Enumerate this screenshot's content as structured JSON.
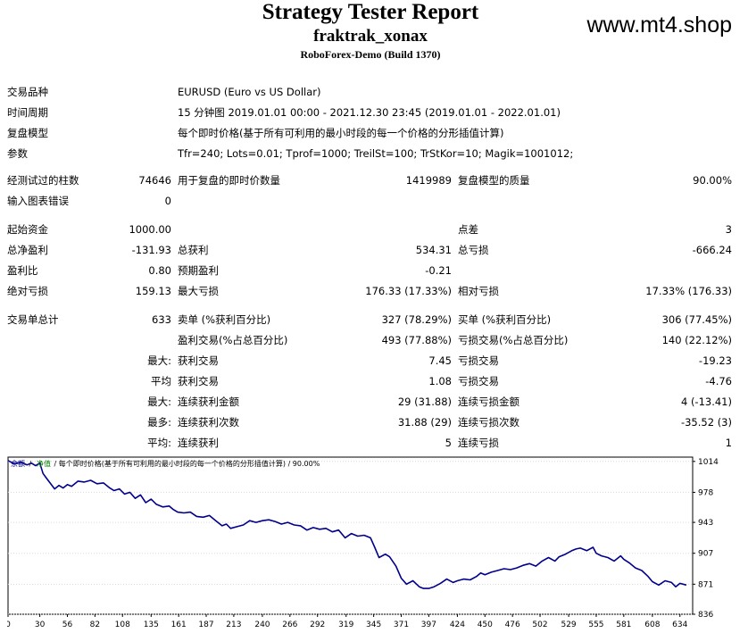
{
  "header": {
    "title": "Strategy Tester Report",
    "subtitle": "fraktrak_xonax",
    "build": "RoboForex-Demo (Build 1370)",
    "watermark": "www.mt4.shop"
  },
  "info": {
    "symbol_label": "交易品种",
    "symbol_value": "EURUSD (Euro vs US Dollar)",
    "period_label": "时间周期",
    "period_value": "15 分钟图 2019.01.01 00:00 - 2021.12.30 23:45 (2019.01.01 - 2022.01.01)",
    "model_label": "复盘模型",
    "model_value": "每个即时价格(基于所有可利用的最小时段的每一个价格的分形插值计算)",
    "params_label": "参数",
    "params_value": "Tfr=240; Lots=0.01; Tprof=1000; TreilSt=100; TrStKor=10; Magik=1001012;"
  },
  "stats": {
    "bars_label": "经测试过的柱数",
    "bars_value": "74646",
    "ticks_label": "用于复盘的即时价数量",
    "ticks_value": "1419989",
    "quality_label": "复盘模型的质量",
    "quality_value": "90.00%",
    "errors_label": "输入图表错误",
    "errors_value": "0",
    "deposit_label": "起始资金",
    "deposit_value": "1000.00",
    "spread_label": "点差",
    "spread_value": "3",
    "net_label": "总净盈利",
    "net_value": "-131.93",
    "gross_profit_label": "总获利",
    "gross_profit_value": "534.31",
    "gross_loss_label": "总亏损",
    "gross_loss_value": "-666.24",
    "pf_label": "盈利比",
    "pf_value": "0.80",
    "payoff_label": "预期盈利",
    "payoff_value": "-0.21",
    "abs_dd_label": "绝对亏损",
    "abs_dd_value": "159.13",
    "max_dd_label": "最大亏损",
    "max_dd_value": "176.33 (17.33%)",
    "rel_dd_label": "相对亏损",
    "rel_dd_value": "17.33% (176.33)",
    "total_label": "交易单总计",
    "total_value": "633",
    "short_label": "卖单 (%获利百分比)",
    "short_value": "327 (78.29%)",
    "long_label": "买单 (%获利百分比)",
    "long_value": "306 (77.45%)",
    "profit_trades_label": "盈利交易(%占总百分比)",
    "profit_trades_value": "493 (77.88%)",
    "loss_trades_label": "亏损交易(%占总百分比)",
    "loss_trades_value": "140 (22.12%)",
    "largest_prefix": "最大:",
    "largest_profit_label": "获利交易",
    "largest_profit_value": "7.45",
    "largest_loss_label": "亏损交易",
    "largest_loss_value": "-19.23",
    "average_prefix": "平均",
    "average_profit_label": "获利交易",
    "average_profit_value": "1.08",
    "average_loss_label": "亏损交易",
    "average_loss_value": "-4.76",
    "max_cons_prefix": "最大:",
    "max_cons_wins_label": "连续获利金额",
    "max_cons_wins_value": "29 (31.88)",
    "max_cons_losses_label": "连续亏损金额",
    "max_cons_losses_value": "4 (-13.41)",
    "most_prefix": "最多:",
    "most_cons_profit_label": "连续获利次数",
    "most_cons_profit_value": "31.88 (29)",
    "most_cons_loss_label": "连续亏损次数",
    "most_cons_loss_value": "-35.52 (3)",
    "avg_cons_prefix": "平均:",
    "avg_cons_wins_label": "连续获利",
    "avg_cons_wins_value": "5",
    "avg_cons_losses_label": "连续亏损",
    "avg_cons_losses_value": "1"
  },
  "chart_data": {
    "type": "line",
    "legend": {
      "balance": "余额",
      "sep1": " / ",
      "equity": "净值",
      "sep2": " / 每个即时价格(基于所有可利用的最小时段的每一个价格的分形插值计算) / 90.00%"
    },
    "x_ticks": [
      "0",
      "30",
      "56",
      "82",
      "108",
      "135",
      "161",
      "187",
      "213",
      "240",
      "266",
      "292",
      "319",
      "345",
      "371",
      "397",
      "424",
      "450",
      "476",
      "502",
      "529",
      "555",
      "581",
      "608",
      "634"
    ],
    "y_ticks": [
      "1014",
      "978",
      "943",
      "907",
      "871",
      "836"
    ],
    "xlim": [
      0,
      646
    ],
    "ylim": [
      836,
      1019
    ],
    "colors": {
      "balance": "#00008b",
      "equity": "#008000",
      "grid": "#d8d8d8",
      "frame": "#000000"
    },
    "series": [
      {
        "name": "余额",
        "x": [
          0,
          6,
          12,
          18,
          22,
          26,
          30,
          33,
          36,
          39,
          44,
          48,
          52,
          56,
          60,
          66,
          72,
          78,
          84,
          90,
          96,
          100,
          105,
          110,
          115,
          120,
          125,
          130,
          135,
          140,
          146,
          152,
          156,
          160,
          166,
          172,
          178,
          184,
          190,
          196,
          202,
          206,
          210,
          216,
          222,
          228,
          234,
          240,
          246,
          252,
          258,
          264,
          270,
          276,
          282,
          288,
          294,
          300,
          306,
          312,
          318,
          324,
          330,
          336,
          342,
          346,
          350,
          356,
          360,
          366,
          371,
          376,
          382,
          388,
          392,
          397,
          402,
          408,
          414,
          420,
          424,
          430,
          436,
          442,
          446,
          450,
          456,
          462,
          468,
          474,
          480,
          486,
          492,
          498,
          504,
          510,
          516,
          520,
          526,
          532,
          536,
          540,
          546,
          552,
          555,
          560,
          566,
          572,
          578,
          581,
          586,
          592,
          598,
          604,
          608,
          614,
          620,
          626,
          630,
          634,
          640
        ],
        "y": [
          1015,
          1011,
          1013,
          1010,
          1012,
          1009,
          1012,
          1000,
          995,
          990,
          982,
          986,
          983,
          987,
          985,
          991,
          990,
          992,
          988,
          989,
          983,
          980,
          982,
          976,
          978,
          971,
          975,
          966,
          970,
          964,
          961,
          962,
          958,
          955,
          954,
          955,
          950,
          949,
          951,
          945,
          939,
          941,
          936,
          938,
          940,
          945,
          943,
          945,
          946,
          944,
          941,
          943,
          940,
          939,
          934,
          937,
          935,
          936,
          932,
          934,
          925,
          930,
          927,
          928,
          925,
          914,
          902,
          906,
          903,
          892,
          878,
          871,
          875,
          868,
          866,
          866,
          868,
          872,
          877,
          873,
          875,
          877,
          876,
          880,
          884,
          882,
          885,
          887,
          889,
          888,
          890,
          893,
          895,
          892,
          898,
          902,
          898,
          903,
          906,
          910,
          912,
          913,
          910,
          914,
          907,
          904,
          902,
          898,
          904,
          900,
          896,
          890,
          887,
          880,
          874,
          870,
          875,
          873,
          868,
          872,
          870
        ]
      }
    ]
  }
}
